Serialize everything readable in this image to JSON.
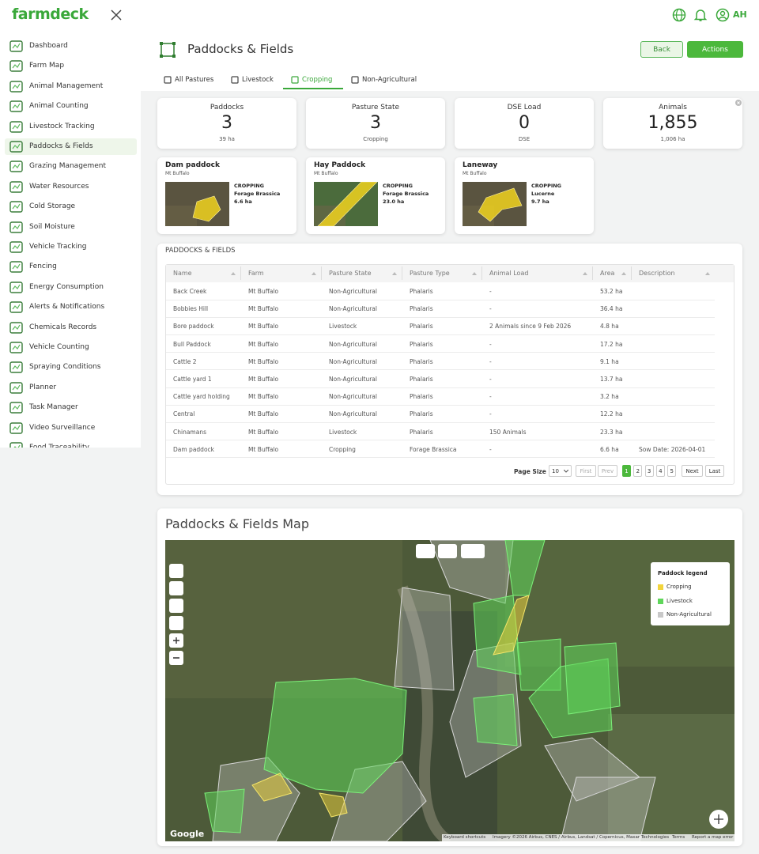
{
  "header": {
    "brand": "farmdeck",
    "user": "AH"
  },
  "sidebar": {
    "items": [
      "Dashboard",
      "Farm Map",
      "Animal Management",
      "Animal Counting",
      "Livestock Tracking",
      "Paddocks & Fields",
      "Grazing Management",
      "Water Resources",
      "Cold Storage",
      "Soil Moisture",
      "Vehicle Tracking",
      "Fencing",
      "Energy Consumption",
      "Alerts & Notifications",
      "Chemicals Records",
      "Vehicle Counting",
      "Spraying Conditions",
      "Planner",
      "Task Manager",
      "Video Surveillance",
      "Food Traceability"
    ],
    "active": 5
  },
  "page": {
    "title": "Paddocks & Fields",
    "back": "Back",
    "actions": "Actions"
  },
  "tabs": {
    "items": [
      "All Pastures",
      "Livestock",
      "Cropping",
      "Non-Agricultural"
    ],
    "active": 2
  },
  "stats": [
    {
      "label": "Paddocks",
      "value": "3",
      "sub": "39 ha"
    },
    {
      "label": "Pasture State",
      "value": "3",
      "sub": "Cropping"
    },
    {
      "label": "DSE Load",
      "value": "0",
      "sub": "DSE"
    },
    {
      "label": "Animals",
      "value": "1,855",
      "sub": "1,006 ha"
    }
  ],
  "cards": [
    {
      "name": "Dam paddock",
      "farm": "Mt Buffalo",
      "state": "CROPPING",
      "crop": "Forage Brassica",
      "area": "6.6 ha"
    },
    {
      "name": "Hay Paddock",
      "farm": "Mt Buffalo",
      "state": "CROPPING",
      "crop": "Forage Brassica",
      "area": "23.0 ha"
    },
    {
      "name": "Laneway",
      "farm": "Mt Buffalo",
      "state": "CROPPING",
      "crop": "Lucerne",
      "area": "9.7 ha"
    }
  ],
  "table": {
    "title": "PADDOCKS & FIELDS",
    "columns": [
      "Name",
      "Farm",
      "Pasture State",
      "Pasture Type",
      "Animal Load",
      "Area",
      "Description"
    ],
    "rows": [
      [
        "Back Creek",
        "Mt Buffalo",
        "Non-Agricultural",
        "Phalaris",
        "-",
        "53.2 ha"
      ],
      [
        "Bobbies Hill",
        "Mt Buffalo",
        "Non-Agricultural",
        "Phalaris",
        "-",
        "36.4 ha"
      ],
      [
        "Bore paddock",
        "Mt Buffalo",
        "Livestock",
        "Phalaris",
        "2 Animals since 9 Feb 2026",
        "4.8 ha"
      ],
      [
        "Bull Paddock",
        "Mt Buffalo",
        "Non-Agricultural",
        "Phalaris",
        "-",
        "17.2 ha"
      ],
      [
        "Cattle 2",
        "Mt Buffalo",
        "Non-Agricultural",
        "Phalaris",
        "-",
        "9.1 ha"
      ],
      [
        "Cattle yard 1",
        "Mt Buffalo",
        "Non-Agricultural",
        "Phalaris",
        "-",
        "13.7 ha"
      ],
      [
        "Cattle yard holding",
        "Mt Buffalo",
        "Non-Agricultural",
        "Phalaris",
        "-",
        "3.2 ha"
      ],
      [
        "Central",
        "Mt Buffalo",
        "Non-Agricultural",
        "Phalaris",
        "-",
        "12.2 ha"
      ],
      [
        "Chinamans",
        "Mt Buffalo",
        "Livestock",
        "Phalaris",
        "150 Animals",
        "23.3 ha"
      ],
      [
        "Dam paddock",
        "Mt Buffalo",
        "Cropping",
        "Forage Brassica",
        "-",
        "6.6 ha",
        "Sow Date: 2026-04-01"
      ]
    ]
  },
  "pagination": {
    "page_size_label": "Page Size",
    "page_size": "10",
    "first": "First",
    "prev": "Prev",
    "pages": [
      "1",
      "2",
      "3",
      "4",
      "5"
    ],
    "current": 0,
    "next": "Next",
    "last": "Last"
  },
  "map": {
    "title": "Paddocks & Fields Map",
    "legend_title": "Paddock legend",
    "legend": [
      {
        "label": "Cropping",
        "color": "#f2d43c"
      },
      {
        "label": "Livestock",
        "color": "#5fd65a"
      },
      {
        "label": "Non-Agricultural",
        "color": "#c8c8c8"
      }
    ],
    "google": "Google",
    "attribution": [
      "Keyboard shortcuts",
      "Imagery ©2026 Airbus, CNES / Airbus, Landsat / Copernicus, Maxar Technologies",
      "Terms",
      "Report a map error"
    ]
  }
}
